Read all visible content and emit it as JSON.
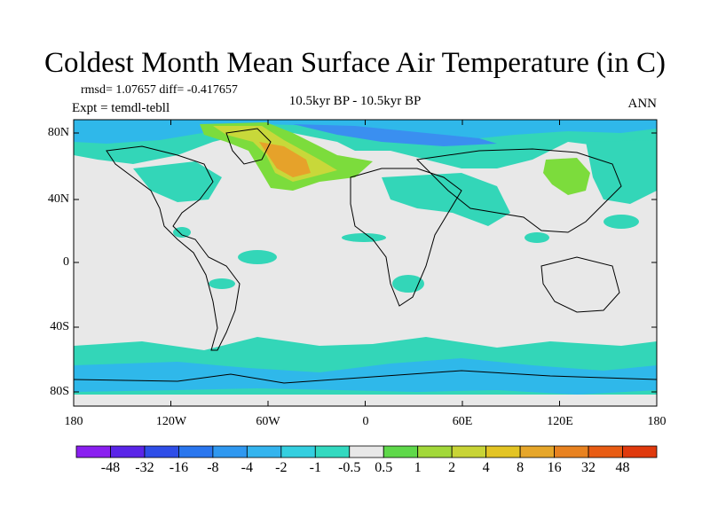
{
  "title": "Coldest Month Mean Surface Air Temperature (in C)",
  "stats": {
    "rmsd_diff": "rmsd= 1.07657 diff= -0.417657",
    "expt": "Expt = temdl-tebll",
    "period": "10.5kyr BP - 10.5kyr BP",
    "season": "ANN"
  },
  "map": {
    "lat_ticks": [
      "80N",
      "40N",
      "0",
      "40S",
      "80S"
    ],
    "lon_ticks": [
      "180",
      "120W",
      "60W",
      "0",
      "60E",
      "120E",
      "180"
    ],
    "colors": {
      "neutral": "#e8e8e8",
      "cyan": "#33d6b8",
      "light_blue": "#2fb8ea",
      "blue": "#3a8ff0",
      "green": "#7cdc3c",
      "yellow_green": "#c8d83a",
      "orange": "#e6a22a"
    }
  },
  "colorbar": {
    "labels": [
      "-48",
      "-32",
      "-16",
      "-8",
      "-4",
      "-2",
      "-1",
      "-0.5",
      "0.5",
      "1",
      "2",
      "4",
      "8",
      "16",
      "32",
      "48"
    ],
    "colors": [
      "#8a1ff0",
      "#5a25e8",
      "#2f4ee8",
      "#2a76ee",
      "#2f98f0",
      "#34b4ee",
      "#34cfe0",
      "#33d9c0",
      "#e8e8e8",
      "#5fd84a",
      "#a2d83a",
      "#c8d436",
      "#e3c424",
      "#e6a62a",
      "#e88220",
      "#e85c14",
      "#e03a0e"
    ]
  }
}
